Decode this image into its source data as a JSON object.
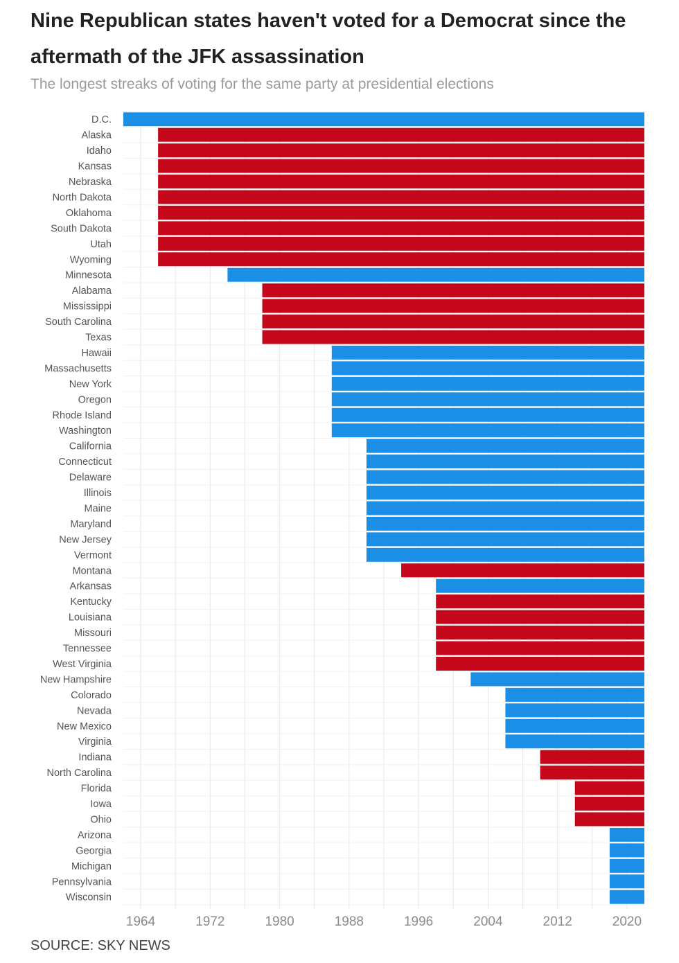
{
  "title": "Nine Republican states haven't voted for a Democrat since the aftermath of the JFK assassination",
  "subtitle": "The longest streaks of voting for the same party at presidential elections",
  "source": "SOURCE: SKY NEWS",
  "colors": {
    "democrat": "#1b8ee6",
    "republican": "#c4071a",
    "grid": "#e6e6e6"
  },
  "chart_data": {
    "type": "bar",
    "orientation": "horizontal",
    "title": "Nine Republican states haven't voted for a Democrat since the aftermath of the JFK assassination",
    "subtitle": "The longest streaks of voting for the same party at presidential elections",
    "xlabel": "",
    "ylabel": "",
    "xlim": [
      1962,
      2022
    ],
    "xticks": [
      1964,
      1972,
      1980,
      1988,
      1996,
      2004,
      2012,
      2020
    ],
    "grid": true,
    "end_year": 2020,
    "series": [
      {
        "name": "D.C.",
        "party": "Democrat",
        "start": 1964
      },
      {
        "name": "Alaska",
        "party": "Republican",
        "start": 1968
      },
      {
        "name": "Idaho",
        "party": "Republican",
        "start": 1968
      },
      {
        "name": "Kansas",
        "party": "Republican",
        "start": 1968
      },
      {
        "name": "Nebraska",
        "party": "Republican",
        "start": 1968
      },
      {
        "name": "North Dakota",
        "party": "Republican",
        "start": 1968
      },
      {
        "name": "Oklahoma",
        "party": "Republican",
        "start": 1968
      },
      {
        "name": "South Dakota",
        "party": "Republican",
        "start": 1968
      },
      {
        "name": "Utah",
        "party": "Republican",
        "start": 1968
      },
      {
        "name": "Wyoming",
        "party": "Republican",
        "start": 1968
      },
      {
        "name": "Minnesota",
        "party": "Democrat",
        "start": 1976
      },
      {
        "name": "Alabama",
        "party": "Republican",
        "start": 1980
      },
      {
        "name": "Mississippi",
        "party": "Republican",
        "start": 1980
      },
      {
        "name": "South Carolina",
        "party": "Republican",
        "start": 1980
      },
      {
        "name": "Texas",
        "party": "Republican",
        "start": 1980
      },
      {
        "name": "Hawaii",
        "party": "Democrat",
        "start": 1988
      },
      {
        "name": "Massachusetts",
        "party": "Democrat",
        "start": 1988
      },
      {
        "name": "New York",
        "party": "Democrat",
        "start": 1988
      },
      {
        "name": "Oregon",
        "party": "Democrat",
        "start": 1988
      },
      {
        "name": "Rhode Island",
        "party": "Democrat",
        "start": 1988
      },
      {
        "name": "Washington",
        "party": "Democrat",
        "start": 1988
      },
      {
        "name": "California",
        "party": "Democrat",
        "start": 1992
      },
      {
        "name": "Connecticut",
        "party": "Democrat",
        "start": 1992
      },
      {
        "name": "Delaware",
        "party": "Democrat",
        "start": 1992
      },
      {
        "name": "Illinois",
        "party": "Democrat",
        "start": 1992
      },
      {
        "name": "Maine",
        "party": "Democrat",
        "start": 1992
      },
      {
        "name": "Maryland",
        "party": "Democrat",
        "start": 1992
      },
      {
        "name": "New Jersey",
        "party": "Democrat",
        "start": 1992
      },
      {
        "name": "Vermont",
        "party": "Democrat",
        "start": 1992
      },
      {
        "name": "Montana",
        "party": "Republican",
        "start": 1996
      },
      {
        "name": "Arkansas",
        "party": "Democrat",
        "start": 2000
      },
      {
        "name": "Kentucky",
        "party": "Republican",
        "start": 2000
      },
      {
        "name": "Louisiana",
        "party": "Republican",
        "start": 2000
      },
      {
        "name": "Missouri",
        "party": "Republican",
        "start": 2000
      },
      {
        "name": "Tennessee",
        "party": "Republican",
        "start": 2000
      },
      {
        "name": "West Virginia",
        "party": "Republican",
        "start": 2000
      },
      {
        "name": "New Hampshire",
        "party": "Democrat",
        "start": 2004
      },
      {
        "name": "Colorado",
        "party": "Democrat",
        "start": 2008
      },
      {
        "name": "Nevada",
        "party": "Democrat",
        "start": 2008
      },
      {
        "name": "New Mexico",
        "party": "Democrat",
        "start": 2008
      },
      {
        "name": "Virginia",
        "party": "Democrat",
        "start": 2008
      },
      {
        "name": "Indiana",
        "party": "Republican",
        "start": 2012
      },
      {
        "name": "North Carolina",
        "party": "Republican",
        "start": 2012
      },
      {
        "name": "Florida",
        "party": "Republican",
        "start": 2016
      },
      {
        "name": "Iowa",
        "party": "Republican",
        "start": 2016
      },
      {
        "name": "Ohio",
        "party": "Republican",
        "start": 2016
      },
      {
        "name": "Arizona",
        "party": "Democrat",
        "start": 2020
      },
      {
        "name": "Georgia",
        "party": "Democrat",
        "start": 2020
      },
      {
        "name": "Michigan",
        "party": "Democrat",
        "start": 2020
      },
      {
        "name": "Pennsylvania",
        "party": "Democrat",
        "start": 2020
      },
      {
        "name": "Wisconsin",
        "party": "Democrat",
        "start": 2020
      }
    ]
  }
}
